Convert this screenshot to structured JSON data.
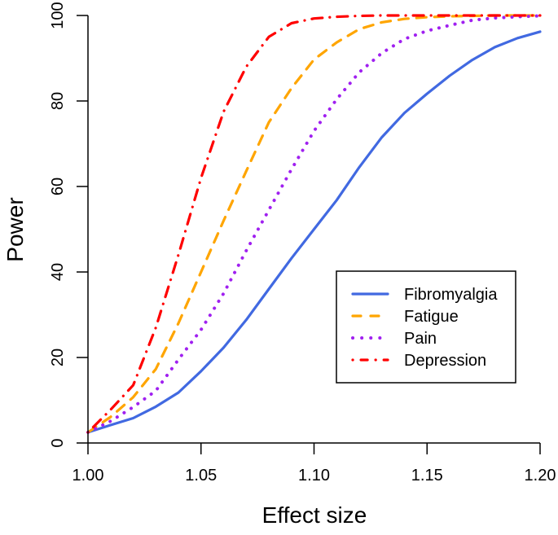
{
  "chart_data": {
    "type": "line",
    "title": "",
    "xlabel": "Effect size",
    "ylabel": "Power",
    "xlim": [
      1.0,
      1.2
    ],
    "ylim": [
      0,
      100
    ],
    "x_ticks": [
      1.0,
      1.05,
      1.1,
      1.15,
      1.2
    ],
    "x_tick_labels": [
      "1.00",
      "1.05",
      "1.10",
      "1.15",
      "1.20"
    ],
    "y_ticks": [
      0,
      20,
      40,
      60,
      80,
      100
    ],
    "y_tick_labels": [
      "0",
      "20",
      "40",
      "60",
      "80",
      "100"
    ],
    "grid": false,
    "legend_position": "center-right",
    "x": [
      1.0,
      1.01,
      1.02,
      1.03,
      1.04,
      1.05,
      1.06,
      1.07,
      1.08,
      1.09,
      1.1,
      1.11,
      1.12,
      1.13,
      1.14,
      1.15,
      1.16,
      1.17,
      1.18,
      1.19,
      1.2
    ],
    "series": [
      {
        "name": "Fibromyalgia",
        "color": "#4169E1",
        "linestyle": "solid",
        "values": [
          2.5,
          4.2,
          5.8,
          8.5,
          11.8,
          16.8,
          22.3,
          28.8,
          36.0,
          43.2,
          50.0,
          56.8,
          64.5,
          71.5,
          77.2,
          81.7,
          85.9,
          89.6,
          92.6,
          94.7,
          96.2
        ]
      },
      {
        "name": "Fatigue",
        "color": "#FFA500",
        "linestyle": "dashed",
        "values": [
          2.5,
          6.1,
          10.7,
          17.3,
          28.0,
          40.0,
          52.0,
          63.6,
          75.0,
          83.0,
          89.7,
          93.7,
          96.8,
          98.4,
          99.2,
          99.6,
          99.8,
          99.9,
          100.0,
          100.0,
          100.0
        ]
      },
      {
        "name": "Pain",
        "color": "#A020F0",
        "linestyle": "dotted",
        "values": [
          2.5,
          5.1,
          8.4,
          12.2,
          19.5,
          26.5,
          35.0,
          45.0,
          54.5,
          64.0,
          73.0,
          80.4,
          86.7,
          91.2,
          94.5,
          96.4,
          97.7,
          98.9,
          99.4,
          99.7,
          99.9
        ]
      },
      {
        "name": "Depression",
        "color": "#FF0000",
        "linestyle": "dotdash",
        "values": [
          2.5,
          7.8,
          13.5,
          27.0,
          44.0,
          62.0,
          77.5,
          88.0,
          95.0,
          98.2,
          99.3,
          99.7,
          99.9,
          100.0,
          100.0,
          100.0,
          100.0,
          100.0,
          100.0,
          100.0,
          100.0
        ]
      }
    ]
  }
}
